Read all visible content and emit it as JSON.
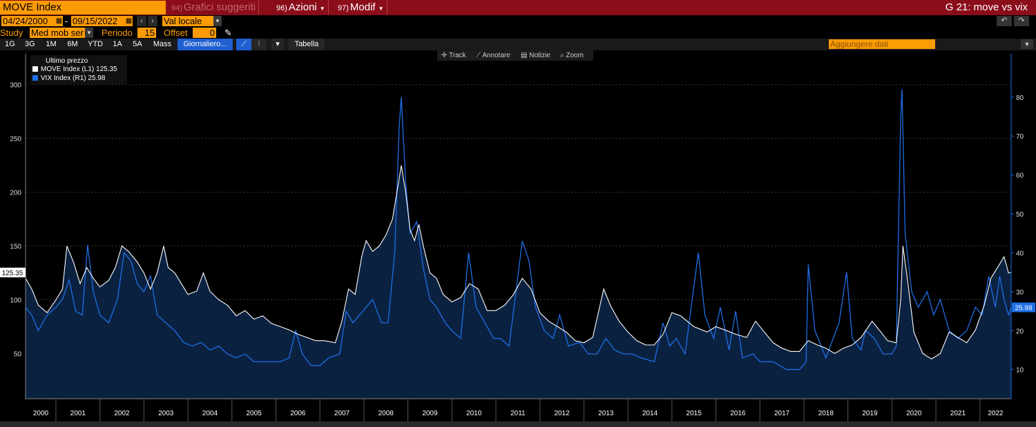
{
  "header": {
    "ticker": "MOVE Index",
    "suggested": {
      "num": "94)",
      "label": "Grafici suggeriti"
    },
    "actions": {
      "num": "96)",
      "label": "Azioni"
    },
    "modify": {
      "num": "97)",
      "label": "Modif"
    },
    "title": "G 21: move vs vix"
  },
  "controls": {
    "start_date": "04/24/2000",
    "dash": "-",
    "end_date": "09/15/2022",
    "currency": "Val locale",
    "study_label": "Study",
    "study_value": "Med mob ser",
    "period_label": "Periodo",
    "period_value": "15",
    "offset_label": "Offset",
    "offset_value": "0"
  },
  "toolbar": {
    "ranges": [
      "1G",
      "3G",
      "1M",
      "6M",
      "YTD",
      "1A",
      "5A",
      "Mass"
    ],
    "frequency": "Giornaliero...",
    "table": "Tabella",
    "add_data": "Aggiungere dati"
  },
  "chart_tools": [
    "Track",
    "Annotare",
    "Notizie",
    "Zoom"
  ],
  "legend": {
    "title": "Ultimo prezzo",
    "items": [
      {
        "name": "MOVE Index  (L1)",
        "value": "125.35",
        "color": "#ffffff"
      },
      {
        "name": "VIX Index  (R1)",
        "value": "25.98",
        "color": "#1e6fe8"
      }
    ]
  },
  "colors": {
    "move": "#ffffff",
    "vix": "#1e6fe8",
    "area": "#0b2140",
    "accent": "#fb9b06",
    "topbar": "#8b0d1a"
  },
  "chart_data": {
    "type": "line",
    "left_axis": {
      "ticks": [
        "50",
        "100",
        "150",
        "200",
        "250",
        "300"
      ],
      "range": [
        8,
        321
      ],
      "last_label": "125.35"
    },
    "right_axis": {
      "ticks": [
        "10",
        "20",
        "30",
        "40",
        "50",
        "60",
        "70",
        "80"
      ],
      "range": [
        2.5,
        89
      ],
      "last_label": "25.98"
    },
    "x_labels": [
      "2000",
      "2001",
      "2002",
      "2003",
      "2004",
      "2005",
      "2006",
      "2007",
      "2008",
      "2009",
      "2010",
      "2011",
      "2012",
      "2013",
      "2014",
      "2015",
      "2016",
      "2017",
      "2018",
      "2019",
      "2020",
      "2021",
      "2022"
    ],
    "series": [
      {
        "name": "MOVE Index",
        "axis": "left",
        "points": [
          [
            2000.31,
            120
          ],
          [
            2000.45,
            110
          ],
          [
            2000.6,
            95
          ],
          [
            2000.8,
            88
          ],
          [
            2001.0,
            100
          ],
          [
            2001.15,
            110
          ],
          [
            2001.25,
            150
          ],
          [
            2001.4,
            135
          ],
          [
            2001.55,
            115
          ],
          [
            2001.7,
            130
          ],
          [
            2001.85,
            120
          ],
          [
            2002.0,
            112
          ],
          [
            2002.2,
            118
          ],
          [
            2002.35,
            130
          ],
          [
            2002.5,
            150
          ],
          [
            2002.65,
            145
          ],
          [
            2002.85,
            135
          ],
          [
            2003.0,
            125
          ],
          [
            2003.15,
            110
          ],
          [
            2003.3,
            125
          ],
          [
            2003.45,
            150
          ],
          [
            2003.55,
            130
          ],
          [
            2003.7,
            125
          ],
          [
            2003.85,
            115
          ],
          [
            2004.0,
            105
          ],
          [
            2004.2,
            108
          ],
          [
            2004.35,
            125
          ],
          [
            2004.5,
            108
          ],
          [
            2004.7,
            100
          ],
          [
            2004.9,
            95
          ],
          [
            2005.1,
            85
          ],
          [
            2005.3,
            90
          ],
          [
            2005.5,
            82
          ],
          [
            2005.7,
            85
          ],
          [
            2005.9,
            78
          ],
          [
            2006.1,
            75
          ],
          [
            2006.3,
            72
          ],
          [
            2006.5,
            68
          ],
          [
            2006.7,
            65
          ],
          [
            2006.9,
            62
          ],
          [
            2007.1,
            62
          ],
          [
            2007.35,
            60
          ],
          [
            2007.5,
            80
          ],
          [
            2007.65,
            110
          ],
          [
            2007.8,
            105
          ],
          [
            2007.95,
            140
          ],
          [
            2008.05,
            155
          ],
          [
            2008.2,
            145
          ],
          [
            2008.35,
            150
          ],
          [
            2008.5,
            160
          ],
          [
            2008.65,
            175
          ],
          [
            2008.75,
            200
          ],
          [
            2008.85,
            225
          ],
          [
            2008.95,
            200
          ],
          [
            2009.05,
            165
          ],
          [
            2009.15,
            155
          ],
          [
            2009.25,
            170
          ],
          [
            2009.35,
            150
          ],
          [
            2009.5,
            125
          ],
          [
            2009.65,
            120
          ],
          [
            2009.8,
            105
          ],
          [
            2010.0,
            98
          ],
          [
            2010.2,
            102
          ],
          [
            2010.4,
            115
          ],
          [
            2010.6,
            110
          ],
          [
            2010.8,
            90
          ],
          [
            2011.0,
            90
          ],
          [
            2011.2,
            95
          ],
          [
            2011.4,
            105
          ],
          [
            2011.6,
            120
          ],
          [
            2011.8,
            110
          ],
          [
            2012.0,
            88
          ],
          [
            2012.2,
            80
          ],
          [
            2012.4,
            75
          ],
          [
            2012.6,
            70
          ],
          [
            2012.8,
            62
          ],
          [
            2013.0,
            60
          ],
          [
            2013.2,
            65
          ],
          [
            2013.45,
            110
          ],
          [
            2013.6,
            95
          ],
          [
            2013.8,
            80
          ],
          [
            2014.0,
            70
          ],
          [
            2014.2,
            62
          ],
          [
            2014.4,
            58
          ],
          [
            2014.6,
            58
          ],
          [
            2014.8,
            68
          ],
          [
            2015.0,
            88
          ],
          [
            2015.2,
            85
          ],
          [
            2015.5,
            75
          ],
          [
            2015.8,
            70
          ],
          [
            2016.0,
            75
          ],
          [
            2016.2,
            72
          ],
          [
            2016.45,
            68
          ],
          [
            2016.7,
            65
          ],
          [
            2016.9,
            80
          ],
          [
            2017.1,
            70
          ],
          [
            2017.3,
            60
          ],
          [
            2017.5,
            55
          ],
          [
            2017.7,
            52
          ],
          [
            2017.9,
            52
          ],
          [
            2018.1,
            62
          ],
          [
            2018.3,
            58
          ],
          [
            2018.5,
            55
          ],
          [
            2018.7,
            50
          ],
          [
            2018.9,
            55
          ],
          [
            2019.1,
            58
          ],
          [
            2019.3,
            65
          ],
          [
            2019.55,
            80
          ],
          [
            2019.75,
            70
          ],
          [
            2019.9,
            62
          ],
          [
            2020.1,
            60
          ],
          [
            2020.2,
            100
          ],
          [
            2020.25,
            150
          ],
          [
            2020.35,
            120
          ],
          [
            2020.5,
            70
          ],
          [
            2020.7,
            50
          ],
          [
            2020.9,
            45
          ],
          [
            2021.1,
            50
          ],
          [
            2021.3,
            70
          ],
          [
            2021.5,
            65
          ],
          [
            2021.7,
            60
          ],
          [
            2021.9,
            72
          ],
          [
            2022.1,
            95
          ],
          [
            2022.25,
            120
          ],
          [
            2022.4,
            130
          ],
          [
            2022.55,
            140
          ],
          [
            2022.65,
            125
          ],
          [
            2022.71,
            125.35
          ]
        ]
      },
      {
        "name": "VIX Index",
        "axis": "right",
        "points": [
          [
            2000.31,
            26
          ],
          [
            2000.45,
            24
          ],
          [
            2000.6,
            20
          ],
          [
            2000.8,
            24
          ],
          [
            2001.0,
            26
          ],
          [
            2001.15,
            28
          ],
          [
            2001.3,
            33
          ],
          [
            2001.45,
            25
          ],
          [
            2001.6,
            24
          ],
          [
            2001.72,
            42
          ],
          [
            2001.85,
            30
          ],
          [
            2002.0,
            24
          ],
          [
            2002.2,
            22
          ],
          [
            2002.4,
            28
          ],
          [
            2002.55,
            40
          ],
          [
            2002.7,
            38
          ],
          [
            2002.85,
            32
          ],
          [
            2003.0,
            30
          ],
          [
            2003.15,
            34
          ],
          [
            2003.3,
            24
          ],
          [
            2003.5,
            22
          ],
          [
            2003.7,
            20
          ],
          [
            2003.9,
            17
          ],
          [
            2004.1,
            16
          ],
          [
            2004.3,
            17
          ],
          [
            2004.5,
            15
          ],
          [
            2004.7,
            16
          ],
          [
            2004.9,
            14
          ],
          [
            2005.1,
            13
          ],
          [
            2005.3,
            14
          ],
          [
            2005.5,
            12
          ],
          [
            2005.7,
            12
          ],
          [
            2005.9,
            12
          ],
          [
            2006.1,
            12
          ],
          [
            2006.3,
            13
          ],
          [
            2006.45,
            20
          ],
          [
            2006.6,
            14
          ],
          [
            2006.8,
            11
          ],
          [
            2007.0,
            11
          ],
          [
            2007.2,
            13
          ],
          [
            2007.45,
            14
          ],
          [
            2007.6,
            25
          ],
          [
            2007.75,
            22
          ],
          [
            2007.9,
            24
          ],
          [
            2008.05,
            26
          ],
          [
            2008.2,
            28
          ],
          [
            2008.4,
            22
          ],
          [
            2008.55,
            22
          ],
          [
            2008.7,
            40
          ],
          [
            2008.8,
            72
          ],
          [
            2008.85,
            80
          ],
          [
            2008.95,
            58
          ],
          [
            2009.05,
            45
          ],
          [
            2009.2,
            48
          ],
          [
            2009.35,
            36
          ],
          [
            2009.5,
            28
          ],
          [
            2009.65,
            26
          ],
          [
            2009.85,
            22
          ],
          [
            2010.0,
            20
          ],
          [
            2010.2,
            18
          ],
          [
            2010.38,
            40
          ],
          [
            2010.55,
            26
          ],
          [
            2010.75,
            22
          ],
          [
            2010.95,
            18
          ],
          [
            2011.1,
            18
          ],
          [
            2011.3,
            16
          ],
          [
            2011.6,
            43
          ],
          [
            2011.75,
            38
          ],
          [
            2011.9,
            26
          ],
          [
            2012.1,
            20
          ],
          [
            2012.3,
            18
          ],
          [
            2012.45,
            24
          ],
          [
            2012.65,
            16
          ],
          [
            2012.9,
            17
          ],
          [
            2013.1,
            14
          ],
          [
            2013.3,
            14
          ],
          [
            2013.5,
            18
          ],
          [
            2013.7,
            15
          ],
          [
            2013.9,
            14
          ],
          [
            2014.1,
            14
          ],
          [
            2014.3,
            13
          ],
          [
            2014.6,
            12
          ],
          [
            2014.8,
            22
          ],
          [
            2014.95,
            16
          ],
          [
            2015.1,
            18
          ],
          [
            2015.3,
            14
          ],
          [
            2015.6,
            40
          ],
          [
            2015.75,
            24
          ],
          [
            2015.95,
            18
          ],
          [
            2016.1,
            26
          ],
          [
            2016.3,
            15
          ],
          [
            2016.45,
            25
          ],
          [
            2016.6,
            13
          ],
          [
            2016.85,
            14
          ],
          [
            2017.0,
            12
          ],
          [
            2017.3,
            12
          ],
          [
            2017.6,
            10
          ],
          [
            2017.9,
            10
          ],
          [
            2018.05,
            12
          ],
          [
            2018.1,
            37
          ],
          [
            2018.25,
            20
          ],
          [
            2018.5,
            13
          ],
          [
            2018.8,
            22
          ],
          [
            2018.97,
            35
          ],
          [
            2019.1,
            18
          ],
          [
            2019.3,
            15
          ],
          [
            2019.4,
            20
          ],
          [
            2019.6,
            18
          ],
          [
            2019.8,
            14
          ],
          [
            2020.0,
            14
          ],
          [
            2020.1,
            16
          ],
          [
            2020.2,
            75
          ],
          [
            2020.23,
            82
          ],
          [
            2020.3,
            45
          ],
          [
            2020.45,
            30
          ],
          [
            2020.6,
            26
          ],
          [
            2020.8,
            30
          ],
          [
            2020.95,
            24
          ],
          [
            2021.1,
            28
          ],
          [
            2021.3,
            20
          ],
          [
            2021.5,
            18
          ],
          [
            2021.7,
            20
          ],
          [
            2021.9,
            26
          ],
          [
            2022.05,
            24
          ],
          [
            2022.2,
            34
          ],
          [
            2022.35,
            26
          ],
          [
            2022.45,
            34
          ],
          [
            2022.55,
            28
          ],
          [
            2022.65,
            24
          ],
          [
            2022.71,
            25.98
          ]
        ]
      }
    ],
    "area_series": "MOVE Index",
    "grid": "horizontal dashed",
    "legend_position": "top-left"
  }
}
